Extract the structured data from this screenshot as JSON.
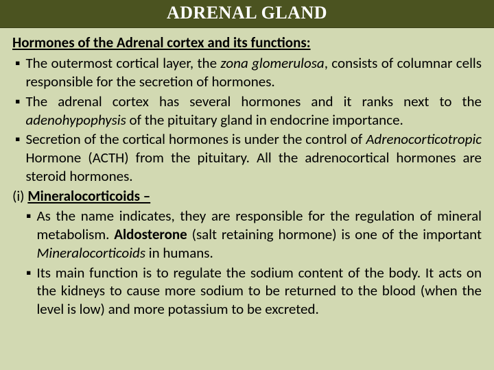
{
  "colors": {
    "slide_background": "#d2d9b2",
    "title_background": "#4b5320",
    "title_text": "#ffffff",
    "body_text": "#000000"
  },
  "typography": {
    "title_font_family": "Times New Roman, Georgia, serif",
    "title_font_size_pt": 26,
    "title_font_weight": "bold",
    "body_font_family": "Calibri, Segoe UI, Arial, sans-serif",
    "body_font_size_pt": 21,
    "body_line_height": 1.28
  },
  "title": "ADRENAL GLAND",
  "heading": "Hormones of the Adrenal cortex and its functions:",
  "bullets": [
    {
      "marker": "▪",
      "runs": [
        {
          "text": "The outermost cortical layer, the "
        },
        {
          "text": "zona glomerulosa",
          "italic": true
        },
        {
          "text": ", consists of columnar cells responsible for the secretion of hormones."
        }
      ]
    },
    {
      "marker": "▪",
      "runs": [
        {
          "text": "The adrenal cortex has several hormones and it ranks next to the "
        },
        {
          "text": "adenohypophysis",
          "italic": true
        },
        {
          "text": " of the pituitary gland in endocrine importance."
        }
      ]
    },
    {
      "marker": "▪",
      "runs": [
        {
          "text": " Secretion of the cortical hormones is under the control of "
        },
        {
          "text": "Adrenocorticotropic",
          "italic": true
        },
        {
          "text": " Hormone (ACTH) from the pituitary. All the adrenocortical hormones are steroid hormones."
        }
      ]
    }
  ],
  "subheading_prefix": "(i)  ",
  "subheading_label": "Mineralocorticoids –",
  "sub_bullets": [
    {
      "marker": "▪",
      "runs": [
        {
          "text": "As the name indicates, they are responsible for the regulation of mineral metabolism. "
        },
        {
          "text": "Aldosterone",
          "bold": true
        },
        {
          "text": " (salt retaining hormone) is one of the important "
        },
        {
          "text": "Mineralocorticoids",
          "italic": true
        },
        {
          "text": " in humans."
        }
      ]
    },
    {
      "marker": "▪",
      "runs": [
        {
          "text": "Its main function is to regulate the sodium content of the body. It acts on the kidneys to cause more sodium to be returned to the blood (when the level is low) and more potassium to be excreted."
        }
      ]
    }
  ]
}
